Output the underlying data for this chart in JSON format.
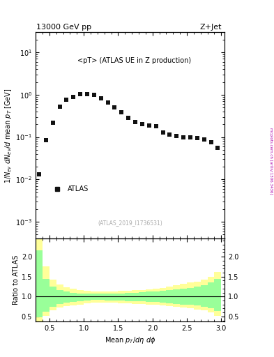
{
  "title_left": "13000 GeV pp",
  "title_right": "Z+Jet",
  "annotation": "<pT> (ATLAS UE in Z production)",
  "dataset_label": "(ATLAS_2019_I1736531)",
  "legend_label": "ATLAS",
  "ylabel_main": "1/N_{ev} dN_{ev}/d mean p_T [GeV]",
  "ylabel_ratio": "Ratio to ATLAS",
  "xlabel": "Mean p_{T}/dη dφ",
  "side_label": "mcplots.cern.ch [arXiv:1306.3436]",
  "xlim": [
    0.3,
    3.05
  ],
  "ylim_main_log": [
    0.0004,
    30
  ],
  "ylim_ratio": [
    0.38,
    2.45
  ],
  "data_x": [
    0.35,
    0.45,
    0.55,
    0.65,
    0.75,
    0.85,
    0.95,
    1.05,
    1.15,
    1.25,
    1.35,
    1.45,
    1.55,
    1.65,
    1.75,
    1.85,
    1.95,
    2.05,
    2.15,
    2.25,
    2.35,
    2.45,
    2.55,
    2.65,
    2.75,
    2.85,
    2.95
  ],
  "data_y": [
    0.013,
    0.085,
    0.22,
    0.52,
    0.75,
    0.9,
    1.05,
    1.02,
    0.98,
    0.82,
    0.65,
    0.5,
    0.38,
    0.29,
    0.23,
    0.2,
    0.19,
    0.18,
    0.13,
    0.115,
    0.105,
    0.1,
    0.098,
    0.094,
    0.088,
    0.075,
    0.055
  ],
  "ratio_x_edges": [
    0.3,
    0.4,
    0.5,
    0.6,
    0.7,
    0.8,
    0.9,
    1.0,
    1.1,
    1.2,
    1.3,
    1.4,
    1.5,
    1.6,
    1.7,
    1.8,
    1.9,
    2.0,
    2.1,
    2.2,
    2.3,
    2.4,
    2.5,
    2.6,
    2.7,
    2.8,
    2.9,
    3.0
  ],
  "yellow_upper": [
    2.5,
    1.75,
    1.42,
    1.3,
    1.23,
    1.2,
    1.17,
    1.15,
    1.13,
    1.12,
    1.13,
    1.13,
    1.14,
    1.15,
    1.16,
    1.17,
    1.18,
    1.2,
    1.22,
    1.25,
    1.28,
    1.32,
    1.35,
    1.38,
    1.42,
    1.5,
    1.62
  ],
  "yellow_lower": [
    0.38,
    0.52,
    0.65,
    0.72,
    0.76,
    0.78,
    0.8,
    0.83,
    0.85,
    0.85,
    0.84,
    0.84,
    0.83,
    0.83,
    0.82,
    0.81,
    0.8,
    0.79,
    0.78,
    0.76,
    0.74,
    0.72,
    0.7,
    0.68,
    0.65,
    0.6,
    0.52
  ],
  "green_upper": [
    2.15,
    1.45,
    1.25,
    1.17,
    1.12,
    1.1,
    1.08,
    1.08,
    1.07,
    1.07,
    1.08,
    1.08,
    1.08,
    1.09,
    1.1,
    1.11,
    1.12,
    1.13,
    1.14,
    1.16,
    1.18,
    1.2,
    1.22,
    1.25,
    1.28,
    1.35,
    1.44
  ],
  "green_lower": [
    0.48,
    0.62,
    0.75,
    0.82,
    0.85,
    0.87,
    0.89,
    0.9,
    0.91,
    0.91,
    0.9,
    0.9,
    0.9,
    0.89,
    0.89,
    0.88,
    0.87,
    0.86,
    0.85,
    0.83,
    0.82,
    0.8,
    0.79,
    0.77,
    0.74,
    0.7,
    0.63
  ],
  "yellow_color": "#ffff99",
  "green_color": "#99ff99",
  "data_color": "#111111",
  "marker": "s",
  "marker_size": 4.5,
  "ratio_yticks": [
    0.5,
    1.0,
    1.5,
    2.0
  ]
}
